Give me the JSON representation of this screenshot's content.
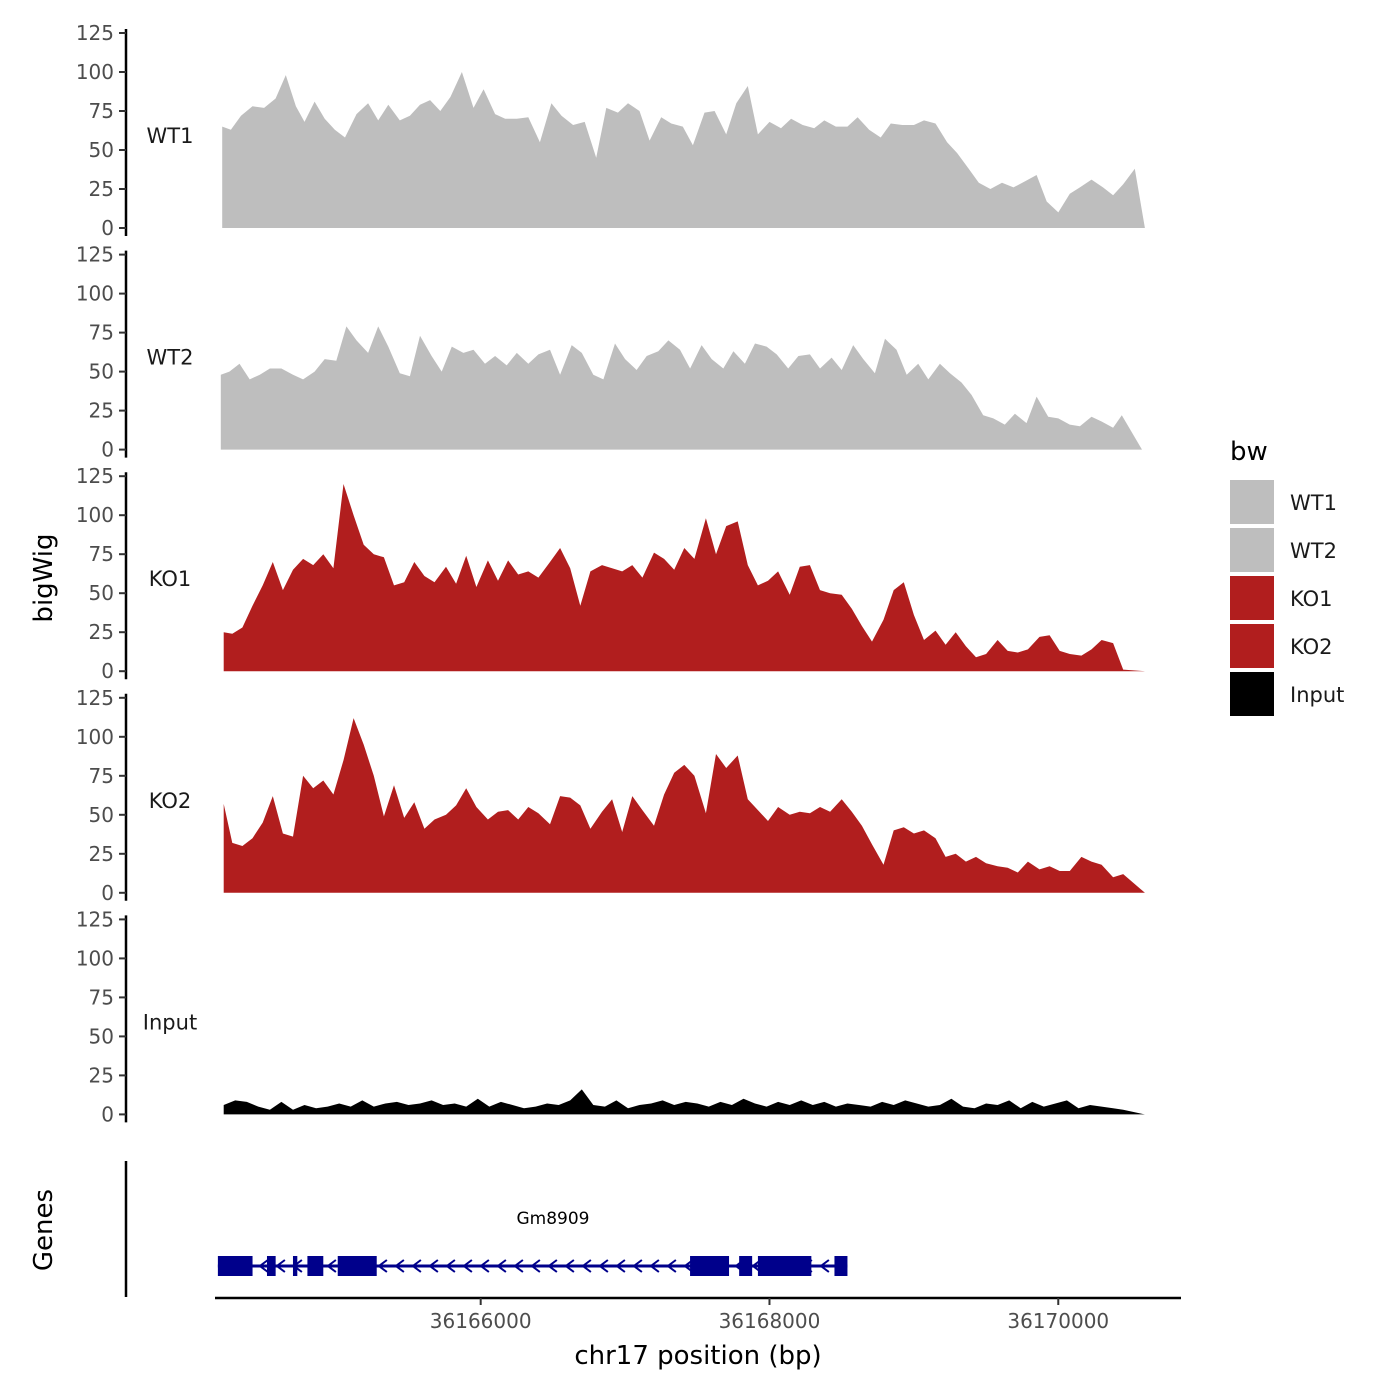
{
  "chart_data": {
    "type": "area",
    "y_axis_title": "bigWig",
    "x_axis_title": "chr17 position (bp)",
    "genes_axis_title": "Genes",
    "xlim": [
      36164160,
      36170850
    ],
    "x_ticks": [
      36166000,
      36168000,
      36170000
    ],
    "x_tick_labels": [
      "36166000",
      "36168000",
      "36170000"
    ],
    "ylim": [
      0,
      125
    ],
    "y_ticks": [
      0,
      25,
      50,
      75,
      100,
      125
    ],
    "y_tick_labels": [
      "0",
      "25",
      "50",
      "75",
      "100",
      "125"
    ],
    "grid": false,
    "tracks": [
      {
        "name": "WT1",
        "color": "#bebebe",
        "x": [
          36164210,
          36164270,
          36164340,
          36164420,
          36164500,
          36164580,
          36164650,
          36164720,
          36164780,
          36164850,
          36164920,
          36164990,
          36165060,
          36165140,
          36165220,
          36165290,
          36165360,
          36165440,
          36165510,
          36165580,
          36165650,
          36165720,
          36165790,
          36165870,
          36165950,
          36166020,
          36166100,
          36166170,
          36166250,
          36166330,
          36166410,
          36166490,
          36166560,
          36166640,
          36166720,
          36166800,
          36166870,
          36166950,
          36167020,
          36167100,
          36167170,
          36167250,
          36167320,
          36167400,
          36167470,
          36167550,
          36167620,
          36167700,
          36167770,
          36167850,
          36167920,
          36168000,
          36168080,
          36168150,
          36168230,
          36168310,
          36168380,
          36168460,
          36168540,
          36168610,
          36168690,
          36168770,
          36168840,
          36168920,
          36169000,
          36169070,
          36169150,
          36169230,
          36169300,
          36169380,
          36169450,
          36169530,
          36169610,
          36169690,
          36169770,
          36169850,
          36169920,
          36170000,
          36170080,
          36170150,
          36170230,
          36170310,
          36170380,
          36170450,
          36170530
        ],
        "values": [
          65,
          63,
          72,
          78,
          77,
          83,
          98,
          78,
          68,
          81,
          70,
          63,
          58,
          73,
          80,
          69,
          79,
          69,
          72,
          79,
          82,
          75,
          84,
          100,
          77,
          89,
          73,
          70,
          70,
          71,
          55,
          80,
          72,
          66,
          68,
          45,
          77,
          74,
          80,
          75,
          56,
          71,
          67,
          65,
          53,
          74,
          75,
          60,
          80,
          91,
          60,
          68,
          64,
          70,
          66,
          64,
          69,
          65,
          65,
          71,
          63,
          58,
          67,
          66,
          66,
          69,
          67,
          55,
          48,
          38,
          29,
          25,
          29,
          26,
          30,
          34,
          17,
          10,
          22,
          26,
          31,
          26,
          21,
          28,
          38
        ],
        "end_x": 36170600
      },
      {
        "name": "WT2",
        "color": "#bebebe",
        "x": [
          36164200,
          36164260,
          36164330,
          36164400,
          36164470,
          36164540,
          36164620,
          36164700,
          36164770,
          36164850,
          36164920,
          36165000,
          36165070,
          36165140,
          36165220,
          36165290,
          36165360,
          36165440,
          36165510,
          36165580,
          36165660,
          36165730,
          36165800,
          36165880,
          36165950,
          36166030,
          36166100,
          36166180,
          36166250,
          36166330,
          36166400,
          36166480,
          36166550,
          36166630,
          36166700,
          36166780,
          36166850,
          36166930,
          36167000,
          36167080,
          36167150,
          36167230,
          36167300,
          36167380,
          36167450,
          36167530,
          36167600,
          36167680,
          36167750,
          36167830,
          36167900,
          36167980,
          36168050,
          36168130,
          36168200,
          36168280,
          36168350,
          36168430,
          36168500,
          36168580,
          36168650,
          36168730,
          36168800,
          36168880,
          36168950,
          36169030,
          36169100,
          36169180,
          36169250,
          36169330,
          36169400,
          36169480,
          36169550,
          36169630,
          36169700,
          36169780,
          36169850,
          36169930,
          36170000,
          36170080,
          36170150,
          36170230,
          36170300,
          36170380,
          36170440
        ],
        "values": [
          48,
          50,
          55,
          45,
          48,
          52,
          52,
          48,
          45,
          50,
          58,
          57,
          79,
          70,
          62,
          79,
          66,
          49,
          47,
          73,
          60,
          50,
          66,
          62,
          64,
          55,
          60,
          54,
          62,
          55,
          61,
          64,
          48,
          67,
          62,
          48,
          45,
          68,
          58,
          51,
          60,
          63,
          70,
          64,
          52,
          67,
          58,
          52,
          63,
          55,
          68,
          66,
          61,
          52,
          60,
          61,
          52,
          59,
          51,
          67,
          58,
          49,
          71,
          64,
          48,
          55,
          45,
          55,
          49,
          43,
          35,
          22,
          20,
          16,
          23,
          17,
          34,
          21,
          20,
          16,
          15,
          21,
          18,
          14,
          22
        ],
        "end_x": 36170580
      },
      {
        "name": "KO1",
        "color": "#b11e1e",
        "x": [
          36164220,
          36164280,
          36164350,
          36164420,
          36164490,
          36164560,
          36164630,
          36164700,
          36164770,
          36164840,
          36164910,
          36164980,
          36165050,
          36165120,
          36165190,
          36165260,
          36165330,
          36165400,
          36165470,
          36165540,
          36165610,
          36165680,
          36165760,
          36165830,
          36165900,
          36165970,
          36166050,
          36166120,
          36166190,
          36166260,
          36166330,
          36166400,
          36166480,
          36166550,
          36166620,
          36166690,
          36166760,
          36166840,
          36166910,
          36166980,
          36167050,
          36167120,
          36167200,
          36167270,
          36167340,
          36167410,
          36167480,
          36167560,
          36167630,
          36167700,
          36167780,
          36167850,
          36167920,
          36167990,
          36168060,
          36168140,
          36168210,
          36168280,
          36168350,
          36168420,
          36168500,
          36168570,
          36168640,
          36168710,
          36168790,
          36168860,
          36168930,
          36169000,
          36169070,
          36169150,
          36169220,
          36169290,
          36169360,
          36169430,
          36169500,
          36169580,
          36169650,
          36169720,
          36169790,
          36169870,
          36169940,
          36170010,
          36170080,
          36170160,
          36170230,
          36170300,
          36170380,
          36170450
        ],
        "values": [
          25,
          24,
          28,
          42,
          55,
          70,
          52,
          65,
          72,
          68,
          75,
          66,
          120,
          100,
          81,
          75,
          73,
          55,
          57,
          70,
          61,
          57,
          67,
          56,
          74,
          54,
          71,
          58,
          71,
          62,
          64,
          60,
          70,
          79,
          66,
          42,
          64,
          68,
          66,
          64,
          68,
          60,
          76,
          72,
          65,
          79,
          72,
          98,
          75,
          93,
          96,
          68,
          55,
          58,
          64,
          49,
          67,
          68,
          52,
          50,
          49,
          40,
          29,
          19,
          33,
          52,
          57,
          36,
          20,
          26,
          17,
          25,
          16,
          9,
          11,
          20,
          13,
          12,
          14,
          22,
          23,
          13,
          11,
          10,
          14,
          20,
          18,
          1
        ],
        "end_x": 36170600
      },
      {
        "name": "KO2",
        "color": "#b11e1e",
        "x": [
          36164220,
          36164280,
          36164350,
          36164420,
          36164490,
          36164560,
          36164630,
          36164700,
          36164770,
          36164840,
          36164910,
          36164980,
          36165050,
          36165120,
          36165190,
          36165260,
          36165330,
          36165400,
          36165470,
          36165540,
          36165610,
          36165680,
          36165760,
          36165830,
          36165900,
          36165970,
          36166050,
          36166120,
          36166190,
          36166260,
          36166330,
          36166400,
          36166480,
          36166550,
          36166620,
          36166690,
          36166760,
          36166840,
          36166910,
          36166980,
          36167050,
          36167120,
          36167200,
          36167270,
          36167340,
          36167410,
          36167480,
          36167560,
          36167630,
          36167700,
          36167780,
          36167850,
          36167920,
          36167990,
          36168060,
          36168140,
          36168210,
          36168280,
          36168350,
          36168420,
          36168500,
          36168570,
          36168640,
          36168710,
          36168790,
          36168860,
          36168930,
          36169000,
          36169070,
          36169150,
          36169220,
          36169290,
          36169360,
          36169430,
          36169500,
          36169580,
          36169650,
          36169720,
          36169790,
          36169870,
          36169940,
          36170010,
          36170080,
          36170160,
          36170230,
          36170300,
          36170380,
          36170450
        ],
        "values": [
          57,
          32,
          30,
          35,
          45,
          62,
          38,
          36,
          75,
          67,
          72,
          63,
          85,
          112,
          95,
          75,
          49,
          69,
          48,
          58,
          41,
          47,
          50,
          56,
          67,
          55,
          47,
          52,
          53,
          47,
          55,
          51,
          44,
          62,
          61,
          56,
          41,
          52,
          60,
          39,
          62,
          53,
          43,
          63,
          77,
          82,
          75,
          51,
          89,
          80,
          88,
          60,
          53,
          46,
          55,
          50,
          52,
          51,
          55,
          52,
          60,
          52,
          43,
          31,
          18,
          40,
          42,
          38,
          40,
          35,
          23,
          25,
          20,
          23,
          19,
          17,
          16,
          13,
          20,
          15,
          17,
          14,
          14,
          23,
          20,
          18,
          10,
          12
        ],
        "end_x": 36170600
      },
      {
        "name": "Input",
        "color": "#000000",
        "x": [
          36164220,
          36164300,
          36164380,
          36164460,
          36164540,
          36164620,
          36164700,
          36164780,
          36164860,
          36164940,
          36165020,
          36165100,
          36165180,
          36165260,
          36165340,
          36165420,
          36165500,
          36165580,
          36165660,
          36165740,
          36165820,
          36165900,
          36165980,
          36166060,
          36166140,
          36166220,
          36166300,
          36166380,
          36166460,
          36166540,
          36166620,
          36166700,
          36166780,
          36166860,
          36166940,
          36167020,
          36167100,
          36167180,
          36167260,
          36167340,
          36167420,
          36167500,
          36167580,
          36167660,
          36167740,
          36167820,
          36167900,
          36167980,
          36168060,
          36168140,
          36168220,
          36168300,
          36168380,
          36168460,
          36168540,
          36168620,
          36168700,
          36168780,
          36168860,
          36168940,
          36169020,
          36169100,
          36169180,
          36169260,
          36169340,
          36169420,
          36169500,
          36169580,
          36169660,
          36169740,
          36169820,
          36169900,
          36169980,
          36170060,
          36170140,
          36170220,
          36170300,
          36170380,
          36170450
        ],
        "values": [
          6,
          9,
          8,
          5,
          3,
          8,
          3,
          6,
          4,
          5,
          7,
          5,
          9,
          5,
          7,
          8,
          6,
          7,
          9,
          6,
          7,
          5,
          10,
          5,
          8,
          6,
          4,
          5,
          7,
          6,
          9,
          16,
          6,
          5,
          9,
          4,
          6,
          7,
          9,
          6,
          8,
          7,
          5,
          8,
          6,
          10,
          7,
          5,
          8,
          6,
          9,
          6,
          8,
          5,
          7,
          6,
          5,
          8,
          6,
          9,
          7,
          5,
          6,
          10,
          5,
          4,
          7,
          6,
          9,
          4,
          8,
          5,
          7,
          9,
          4,
          6,
          5,
          4,
          3
        ],
        "end_x": 36170600
      }
    ],
    "legend": {
      "title": "bw",
      "position": "right",
      "entries": [
        {
          "label": "WT1",
          "color": "#bebebe"
        },
        {
          "label": "WT2",
          "color": "#bebebe"
        },
        {
          "label": "KO1",
          "color": "#b11e1e"
        },
        {
          "label": "KO2",
          "color": "#b11e1e"
        },
        {
          "label": "Input",
          "color": "#000000"
        }
      ]
    },
    "genes": [
      {
        "name": "Gm8909",
        "color": "#00008b",
        "strand": "-",
        "start": 36164180,
        "end": 36168540,
        "exons": [
          [
            36164180,
            36164420
          ],
          [
            36164520,
            36164580
          ],
          [
            36164700,
            36164730
          ],
          [
            36164800,
            36164910
          ],
          [
            36165010,
            36165280
          ],
          [
            36167450,
            36167720
          ],
          [
            36167790,
            36167880
          ],
          [
            36167920,
            36168290
          ],
          [
            36168450,
            36168540
          ]
        ]
      }
    ]
  }
}
